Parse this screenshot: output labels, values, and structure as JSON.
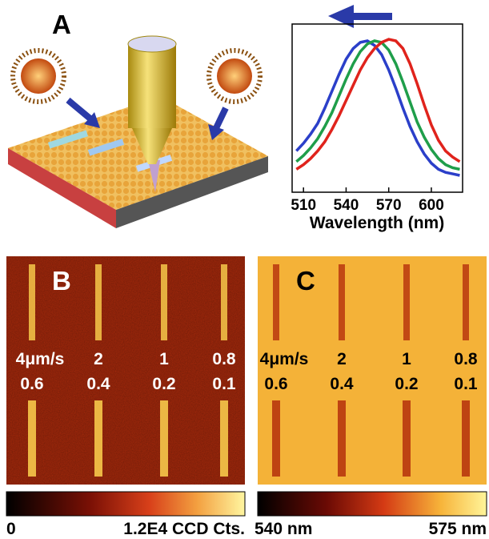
{
  "panels": {
    "A": "A",
    "B": "B",
    "C": "C"
  },
  "speeds": [
    "4μm/s",
    "2",
    "1",
    "0.8"
  ],
  "forces": [
    "0.6",
    "0.4",
    "0.2",
    "0.1"
  ],
  "colorbar_B": {
    "min_label": "0",
    "max_label": "1.2E4 CCD Cts."
  },
  "colorbar_C": {
    "min_label": "540 nm",
    "max_label": "575 nm"
  },
  "chart_data": {
    "type": "line",
    "x_label": "Wavelength (nm)",
    "x": [
      505,
      510,
      515,
      520,
      525,
      530,
      535,
      540,
      545,
      550,
      555,
      560,
      565,
      570,
      575,
      580,
      585,
      590,
      595,
      600,
      605,
      610,
      615,
      620
    ],
    "xlim": [
      502,
      622
    ],
    "xticks": [
      510,
      540,
      570,
      600
    ],
    "ylim": [
      0,
      1.1
    ],
    "series": [
      {
        "color": "#2b3fc9",
        "values": [
          0.27,
          0.32,
          0.38,
          0.45,
          0.55,
          0.66,
          0.77,
          0.87,
          0.94,
          0.98,
          0.99,
          0.96,
          0.9,
          0.8,
          0.68,
          0.55,
          0.43,
          0.33,
          0.25,
          0.19,
          0.15,
          0.13,
          0.12,
          0.11
        ]
      },
      {
        "color": "#1f9e4a",
        "values": [
          0.2,
          0.24,
          0.29,
          0.35,
          0.43,
          0.52,
          0.63,
          0.74,
          0.84,
          0.92,
          0.97,
          0.99,
          0.98,
          0.93,
          0.84,
          0.72,
          0.59,
          0.46,
          0.36,
          0.28,
          0.22,
          0.18,
          0.16,
          0.15
        ]
      },
      {
        "color": "#e0231c",
        "values": [
          0.15,
          0.18,
          0.22,
          0.27,
          0.33,
          0.41,
          0.5,
          0.6,
          0.7,
          0.8,
          0.88,
          0.94,
          0.98,
          1.0,
          0.99,
          0.94,
          0.84,
          0.71,
          0.57,
          0.44,
          0.34,
          0.27,
          0.23,
          0.2
        ]
      }
    ]
  }
}
